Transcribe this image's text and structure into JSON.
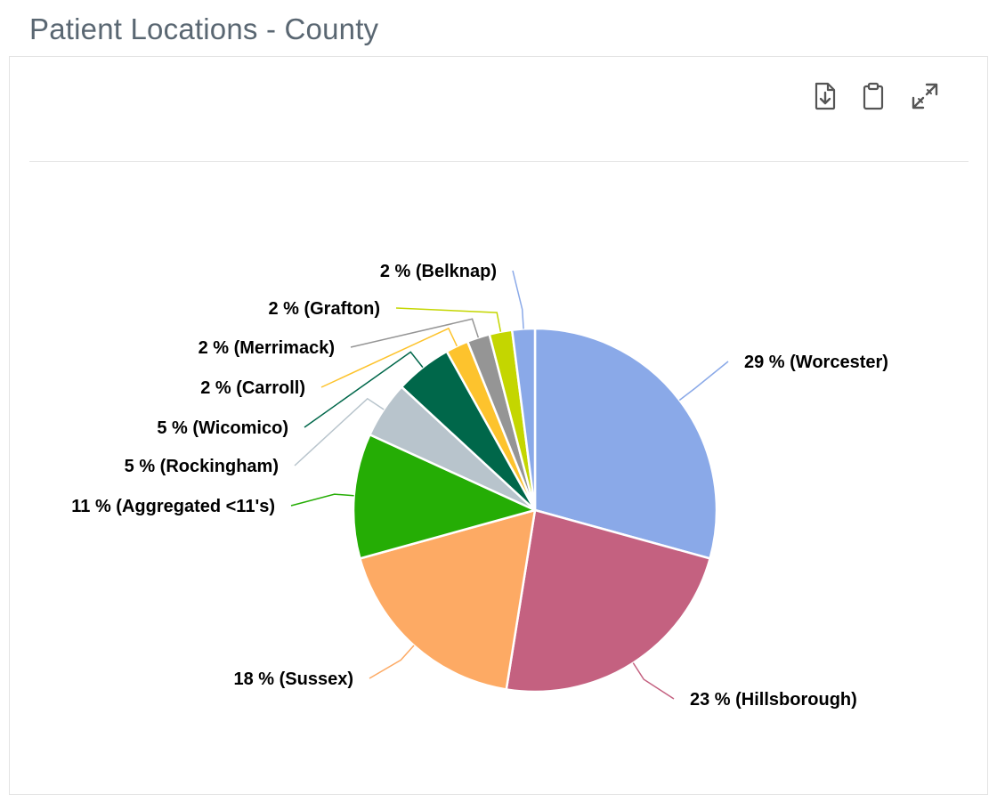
{
  "page": {
    "title": "Patient Locations - County"
  },
  "toolbar": {
    "download_icon": "file-download-icon",
    "clipboard_icon": "clipboard-icon",
    "expand_icon": "expand-icon"
  },
  "chart_data": {
    "type": "pie",
    "title": "",
    "slices": [
      {
        "name": "Worcester",
        "label": "29 % (Worcester)",
        "value": 29,
        "color": "#8aa9e8"
      },
      {
        "name": "Hillsborough",
        "label": "23 % (Hillsborough)",
        "value": 23,
        "color": "#c46180"
      },
      {
        "name": "Sussex",
        "label": "18 % (Sussex)",
        "value": 18,
        "color": "#fdaa64"
      },
      {
        "name": "Aggregated <11's",
        "label": "11 % (Aggregated <11's)",
        "value": 11,
        "color": "#25ad05"
      },
      {
        "name": "Rockingham",
        "label": "5 % (Rockingham)",
        "value": 5,
        "color": "#b8c4cc"
      },
      {
        "name": "Wicomico",
        "label": "5 % (Wicomico)",
        "value": 5,
        "color": "#00674a"
      },
      {
        "name": "Carroll",
        "label": "2 % (Carroll)",
        "value": 2,
        "color": "#fdc32d"
      },
      {
        "name": "Merrimack",
        "label": "2 % (Merrimack)",
        "value": 2,
        "color": "#959595"
      },
      {
        "name": "Grafton",
        "label": "2 % (Grafton)",
        "value": 2,
        "color": "#c4d600"
      },
      {
        "name": "Belknap",
        "label": "2 % (Belknap)",
        "value": 2,
        "color": "#8aa9e8"
      }
    ]
  }
}
